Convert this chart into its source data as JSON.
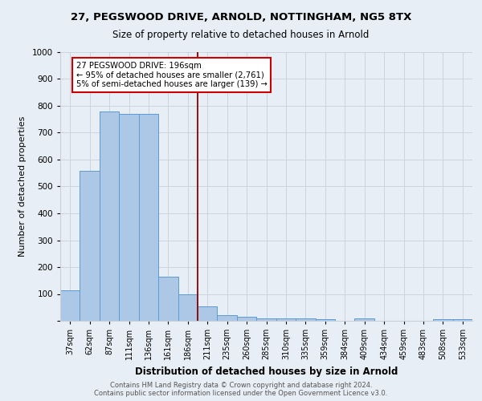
{
  "title_line1": "27, PEGSWOOD DRIVE, ARNOLD, NOTTINGHAM, NG5 8TX",
  "title_line2": "Size of property relative to detached houses in Arnold",
  "xlabel": "Distribution of detached houses by size in Arnold",
  "ylabel": "Number of detached properties",
  "footer_line1": "Contains HM Land Registry data © Crown copyright and database right 2024.",
  "footer_line2": "Contains public sector information licensed under the Open Government Licence v3.0.",
  "categories": [
    "37sqm",
    "62sqm",
    "87sqm",
    "111sqm",
    "136sqm",
    "161sqm",
    "186sqm",
    "211sqm",
    "235sqm",
    "260sqm",
    "285sqm",
    "310sqm",
    "335sqm",
    "359sqm",
    "384sqm",
    "409sqm",
    "434sqm",
    "459sqm",
    "483sqm",
    "508sqm",
    "533sqm"
  ],
  "values": [
    113,
    557,
    779,
    769,
    770,
    163,
    98,
    55,
    21,
    14,
    10,
    10,
    8,
    7,
    0,
    10,
    0,
    0,
    0,
    7,
    7
  ],
  "bar_color": "#adc8e6",
  "bar_edge_color": "#5b9bd5",
  "bg_color": "#e8eef5",
  "plot_bg_color": "#e8eef5",
  "vline_x": 6.5,
  "vline_color": "#8b0000",
  "annotation_text": "27 PEGSWOOD DRIVE: 196sqm\n← 95% of detached houses are smaller (2,761)\n5% of semi-detached houses are larger (139) →",
  "annotation_box_color": "#ffffff",
  "annotation_box_edge": "#cc0000",
  "ylim": [
    0,
    1000
  ],
  "yticks": [
    0,
    100,
    200,
    300,
    400,
    500,
    600,
    700,
    800,
    900,
    1000
  ],
  "grid_color": "#c8d0dc"
}
